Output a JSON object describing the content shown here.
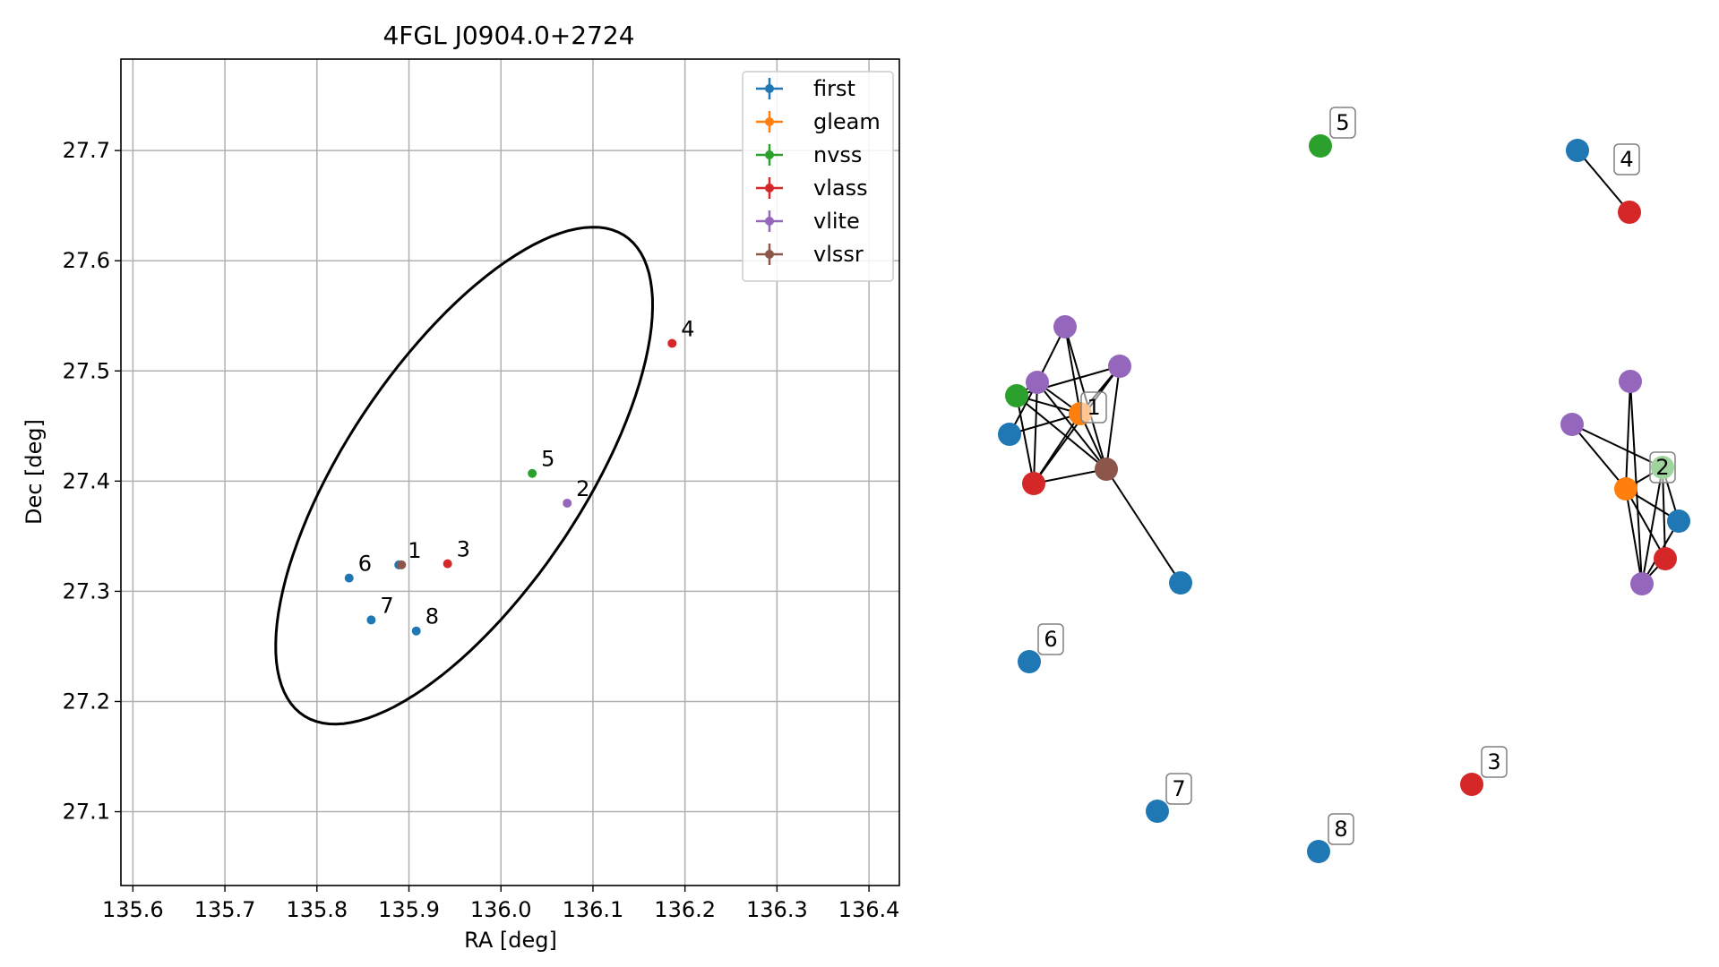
{
  "chart_data": [
    {
      "type": "scatter",
      "title": "4FGL J0904.0+2724",
      "xlabel": "RA [deg]",
      "ylabel": "Dec [deg]",
      "xlim": [
        135.587,
        136.433
      ],
      "ylim": [
        27.033,
        27.783
      ],
      "xticks": [
        "135.6",
        "135.7",
        "135.8",
        "135.9",
        "136.0",
        "136.1",
        "136.2",
        "136.3",
        "136.4"
      ],
      "yticks": [
        "27.1",
        "27.2",
        "27.3",
        "27.4",
        "27.5",
        "27.6",
        "27.7"
      ],
      "grid": true,
      "legend_position": "top-right",
      "series": [
        {
          "name": "first",
          "color": "#1f77b4"
        },
        {
          "name": "gleam",
          "color": "#ff7f0e"
        },
        {
          "name": "nvss",
          "color": "#2ca02c"
        },
        {
          "name": "vlass",
          "color": "#d62728"
        },
        {
          "name": "vlite",
          "color": "#9467bd"
        },
        {
          "name": "vlssr",
          "color": "#8c564b"
        }
      ],
      "points": [
        {
          "label": "1",
          "series": "first",
          "x": 135.889,
          "y": 27.324
        },
        {
          "label": "1",
          "series": "vlssr",
          "x": 135.892,
          "y": 27.324
        },
        {
          "label": "2",
          "series": "vlite",
          "x": 136.072,
          "y": 27.38
        },
        {
          "label": "3",
          "series": "vlass",
          "x": 135.942,
          "y": 27.325
        },
        {
          "label": "4",
          "series": "vlass",
          "x": 136.186,
          "y": 27.525
        },
        {
          "label": "5",
          "series": "nvss",
          "x": 136.034,
          "y": 27.407
        },
        {
          "label": "6",
          "series": "first",
          "x": 135.835,
          "y": 27.312
        },
        {
          "label": "7",
          "series": "first",
          "x": 135.859,
          "y": 27.274
        },
        {
          "label": "8",
          "series": "first",
          "x": 135.908,
          "y": 27.264
        }
      ],
      "ellipse": {
        "center_x": 135.96,
        "center_y": 27.405,
        "semi_major": 0.28,
        "semi_minor": 0.12,
        "angle_deg": 49
      }
    },
    {
      "type": "network",
      "nodes": [
        {
          "id": "c1_vlite_a",
          "series": "vlite",
          "group_label": ""
        },
        {
          "id": "c1_vlite_b",
          "series": "vlite",
          "group_label": ""
        },
        {
          "id": "c1_vlite_c",
          "series": "vlite",
          "group_label": ""
        },
        {
          "id": "c1_nvss",
          "series": "nvss",
          "group_label": ""
        },
        {
          "id": "c1_gleam",
          "series": "gleam",
          "group_label": "1"
        },
        {
          "id": "c1_first_a",
          "series": "first",
          "group_label": ""
        },
        {
          "id": "c1_vlass",
          "series": "vlass",
          "group_label": ""
        },
        {
          "id": "c1_vlssr",
          "series": "vlssr",
          "group_label": ""
        },
        {
          "id": "c1_first_b",
          "series": "first",
          "group_label": ""
        },
        {
          "id": "n5_nvss",
          "series": "nvss",
          "group_label": "5"
        },
        {
          "id": "c4_first",
          "series": "first",
          "group_label": "4"
        },
        {
          "id": "c4_vlass",
          "series": "vlass",
          "group_label": ""
        },
        {
          "id": "c2_vlite_a",
          "series": "vlite",
          "group_label": ""
        },
        {
          "id": "c2_vlite_b",
          "series": "vlite",
          "group_label": ""
        },
        {
          "id": "c2_nvss",
          "series": "nvss",
          "group_label": "2"
        },
        {
          "id": "c2_gleam",
          "series": "gleam",
          "group_label": ""
        },
        {
          "id": "c2_first",
          "series": "first",
          "group_label": ""
        },
        {
          "id": "c2_vlass",
          "series": "vlass",
          "group_label": ""
        },
        {
          "id": "c2_vlite_c",
          "series": "vlite",
          "group_label": ""
        },
        {
          "id": "n6_first",
          "series": "first",
          "group_label": "6"
        },
        {
          "id": "n7_first",
          "series": "first",
          "group_label": "7"
        },
        {
          "id": "n8_first",
          "series": "first",
          "group_label": "8"
        },
        {
          "id": "n3_vlass",
          "series": "vlass",
          "group_label": "3"
        }
      ],
      "edges": [
        [
          "c1_vlite_a",
          "c1_vlite_b"
        ],
        [
          "c1_vlite_a",
          "c1_gleam"
        ],
        [
          "c1_vlite_a",
          "c1_vlssr"
        ],
        [
          "c1_vlite_b",
          "c1_nvss"
        ],
        [
          "c1_vlite_b",
          "c1_gleam"
        ],
        [
          "c1_vlite_b",
          "c1_vlass"
        ],
        [
          "c1_vlite_b",
          "c1_vlssr"
        ],
        [
          "c1_vlite_b",
          "c1_first_a"
        ],
        [
          "c1_vlite_c",
          "c1_nvss"
        ],
        [
          "c1_vlite_c",
          "c1_gleam"
        ],
        [
          "c1_vlite_c",
          "c1_vlass"
        ],
        [
          "c1_vlite_c",
          "c1_vlssr"
        ],
        [
          "c1_nvss",
          "c1_gleam"
        ],
        [
          "c1_nvss",
          "c1_vlass"
        ],
        [
          "c1_nvss",
          "c1_vlssr"
        ],
        [
          "c1_gleam",
          "c1_first_a"
        ],
        [
          "c1_gleam",
          "c1_vlass"
        ],
        [
          "c1_gleam",
          "c1_vlssr"
        ],
        [
          "c1_vlass",
          "c1_vlssr"
        ],
        [
          "c1_vlssr",
          "c1_first_b"
        ],
        [
          "c4_first",
          "c4_vlass"
        ],
        [
          "c2_vlite_a",
          "c2_gleam"
        ],
        [
          "c2_vlite_a",
          "c2_nvss"
        ],
        [
          "c2_vlite_b",
          "c2_gleam"
        ],
        [
          "c2_vlite_b",
          "c2_vlite_c"
        ],
        [
          "c2_nvss",
          "c2_gleam"
        ],
        [
          "c2_nvss",
          "c2_first"
        ],
        [
          "c2_nvss",
          "c2_vlass"
        ],
        [
          "c2_nvss",
          "c2_vlite_c"
        ],
        [
          "c2_gleam",
          "c2_first"
        ],
        [
          "c2_gleam",
          "c2_vlass"
        ],
        [
          "c2_gleam",
          "c2_vlite_c"
        ],
        [
          "c2_first",
          "c2_vlite_c"
        ],
        [
          "c2_vlass",
          "c2_vlite_c"
        ]
      ]
    }
  ]
}
